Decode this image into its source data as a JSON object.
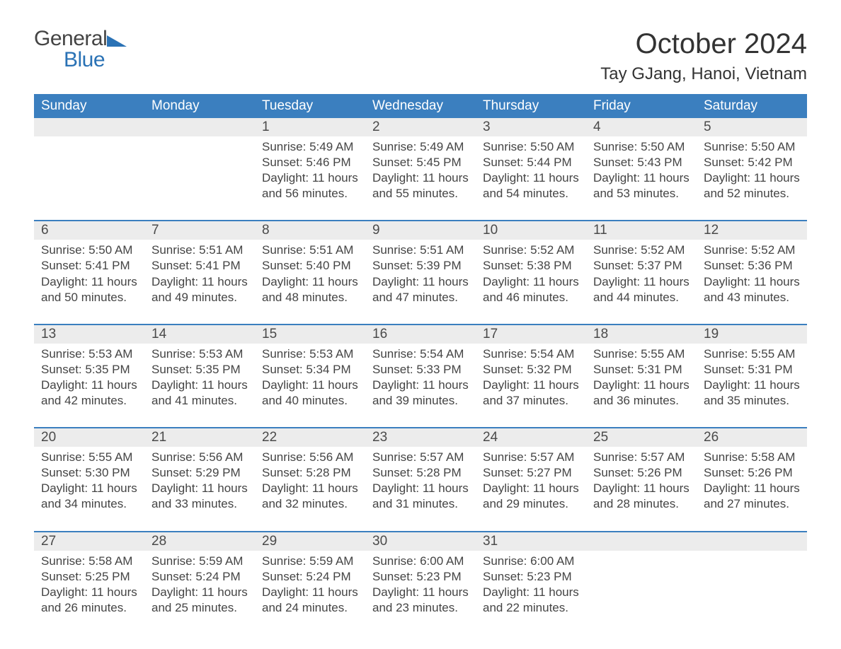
{
  "brand": {
    "general": "General",
    "blue": "Blue",
    "accent_color": "#2a72b5"
  },
  "title": "October 2024",
  "location": "Tay GJang, Hanoi, Vietnam",
  "colors": {
    "header_bg": "#3b7fbf",
    "header_text": "#ffffff",
    "daynum_bg": "#ececec",
    "text": "#444444",
    "rule": "#3b7fbf",
    "page_bg": "#ffffff"
  },
  "typography": {
    "month_title_pt": 40,
    "location_pt": 24,
    "weekday_pt": 19,
    "daynum_pt": 19,
    "body_pt": 17
  },
  "weekdays": [
    "Sunday",
    "Monday",
    "Tuesday",
    "Wednesday",
    "Thursday",
    "Friday",
    "Saturday"
  ],
  "weeks": [
    [
      null,
      null,
      {
        "n": "1",
        "sunrise": "Sunrise: 5:49 AM",
        "sunset": "Sunset: 5:46 PM",
        "day1": "Daylight: 11 hours",
        "day2": "and 56 minutes."
      },
      {
        "n": "2",
        "sunrise": "Sunrise: 5:49 AM",
        "sunset": "Sunset: 5:45 PM",
        "day1": "Daylight: 11 hours",
        "day2": "and 55 minutes."
      },
      {
        "n": "3",
        "sunrise": "Sunrise: 5:50 AM",
        "sunset": "Sunset: 5:44 PM",
        "day1": "Daylight: 11 hours",
        "day2": "and 54 minutes."
      },
      {
        "n": "4",
        "sunrise": "Sunrise: 5:50 AM",
        "sunset": "Sunset: 5:43 PM",
        "day1": "Daylight: 11 hours",
        "day2": "and 53 minutes."
      },
      {
        "n": "5",
        "sunrise": "Sunrise: 5:50 AM",
        "sunset": "Sunset: 5:42 PM",
        "day1": "Daylight: 11 hours",
        "day2": "and 52 minutes."
      }
    ],
    [
      {
        "n": "6",
        "sunrise": "Sunrise: 5:50 AM",
        "sunset": "Sunset: 5:41 PM",
        "day1": "Daylight: 11 hours",
        "day2": "and 50 minutes."
      },
      {
        "n": "7",
        "sunrise": "Sunrise: 5:51 AM",
        "sunset": "Sunset: 5:41 PM",
        "day1": "Daylight: 11 hours",
        "day2": "and 49 minutes."
      },
      {
        "n": "8",
        "sunrise": "Sunrise: 5:51 AM",
        "sunset": "Sunset: 5:40 PM",
        "day1": "Daylight: 11 hours",
        "day2": "and 48 minutes."
      },
      {
        "n": "9",
        "sunrise": "Sunrise: 5:51 AM",
        "sunset": "Sunset: 5:39 PM",
        "day1": "Daylight: 11 hours",
        "day2": "and 47 minutes."
      },
      {
        "n": "10",
        "sunrise": "Sunrise: 5:52 AM",
        "sunset": "Sunset: 5:38 PM",
        "day1": "Daylight: 11 hours",
        "day2": "and 46 minutes."
      },
      {
        "n": "11",
        "sunrise": "Sunrise: 5:52 AM",
        "sunset": "Sunset: 5:37 PM",
        "day1": "Daylight: 11 hours",
        "day2": "and 44 minutes."
      },
      {
        "n": "12",
        "sunrise": "Sunrise: 5:52 AM",
        "sunset": "Sunset: 5:36 PM",
        "day1": "Daylight: 11 hours",
        "day2": "and 43 minutes."
      }
    ],
    [
      {
        "n": "13",
        "sunrise": "Sunrise: 5:53 AM",
        "sunset": "Sunset: 5:35 PM",
        "day1": "Daylight: 11 hours",
        "day2": "and 42 minutes."
      },
      {
        "n": "14",
        "sunrise": "Sunrise: 5:53 AM",
        "sunset": "Sunset: 5:35 PM",
        "day1": "Daylight: 11 hours",
        "day2": "and 41 minutes."
      },
      {
        "n": "15",
        "sunrise": "Sunrise: 5:53 AM",
        "sunset": "Sunset: 5:34 PM",
        "day1": "Daylight: 11 hours",
        "day2": "and 40 minutes."
      },
      {
        "n": "16",
        "sunrise": "Sunrise: 5:54 AM",
        "sunset": "Sunset: 5:33 PM",
        "day1": "Daylight: 11 hours",
        "day2": "and 39 minutes."
      },
      {
        "n": "17",
        "sunrise": "Sunrise: 5:54 AM",
        "sunset": "Sunset: 5:32 PM",
        "day1": "Daylight: 11 hours",
        "day2": "and 37 minutes."
      },
      {
        "n": "18",
        "sunrise": "Sunrise: 5:55 AM",
        "sunset": "Sunset: 5:31 PM",
        "day1": "Daylight: 11 hours",
        "day2": "and 36 minutes."
      },
      {
        "n": "19",
        "sunrise": "Sunrise: 5:55 AM",
        "sunset": "Sunset: 5:31 PM",
        "day1": "Daylight: 11 hours",
        "day2": "and 35 minutes."
      }
    ],
    [
      {
        "n": "20",
        "sunrise": "Sunrise: 5:55 AM",
        "sunset": "Sunset: 5:30 PM",
        "day1": "Daylight: 11 hours",
        "day2": "and 34 minutes."
      },
      {
        "n": "21",
        "sunrise": "Sunrise: 5:56 AM",
        "sunset": "Sunset: 5:29 PM",
        "day1": "Daylight: 11 hours",
        "day2": "and 33 minutes."
      },
      {
        "n": "22",
        "sunrise": "Sunrise: 5:56 AM",
        "sunset": "Sunset: 5:28 PM",
        "day1": "Daylight: 11 hours",
        "day2": "and 32 minutes."
      },
      {
        "n": "23",
        "sunrise": "Sunrise: 5:57 AM",
        "sunset": "Sunset: 5:28 PM",
        "day1": "Daylight: 11 hours",
        "day2": "and 31 minutes."
      },
      {
        "n": "24",
        "sunrise": "Sunrise: 5:57 AM",
        "sunset": "Sunset: 5:27 PM",
        "day1": "Daylight: 11 hours",
        "day2": "and 29 minutes."
      },
      {
        "n": "25",
        "sunrise": "Sunrise: 5:57 AM",
        "sunset": "Sunset: 5:26 PM",
        "day1": "Daylight: 11 hours",
        "day2": "and 28 minutes."
      },
      {
        "n": "26",
        "sunrise": "Sunrise: 5:58 AM",
        "sunset": "Sunset: 5:26 PM",
        "day1": "Daylight: 11 hours",
        "day2": "and 27 minutes."
      }
    ],
    [
      {
        "n": "27",
        "sunrise": "Sunrise: 5:58 AM",
        "sunset": "Sunset: 5:25 PM",
        "day1": "Daylight: 11 hours",
        "day2": "and 26 minutes."
      },
      {
        "n": "28",
        "sunrise": "Sunrise: 5:59 AM",
        "sunset": "Sunset: 5:24 PM",
        "day1": "Daylight: 11 hours",
        "day2": "and 25 minutes."
      },
      {
        "n": "29",
        "sunrise": "Sunrise: 5:59 AM",
        "sunset": "Sunset: 5:24 PM",
        "day1": "Daylight: 11 hours",
        "day2": "and 24 minutes."
      },
      {
        "n": "30",
        "sunrise": "Sunrise: 6:00 AM",
        "sunset": "Sunset: 5:23 PM",
        "day1": "Daylight: 11 hours",
        "day2": "and 23 minutes."
      },
      {
        "n": "31",
        "sunrise": "Sunrise: 6:00 AM",
        "sunset": "Sunset: 5:23 PM",
        "day1": "Daylight: 11 hours",
        "day2": "and 22 minutes."
      },
      null,
      null
    ]
  ]
}
